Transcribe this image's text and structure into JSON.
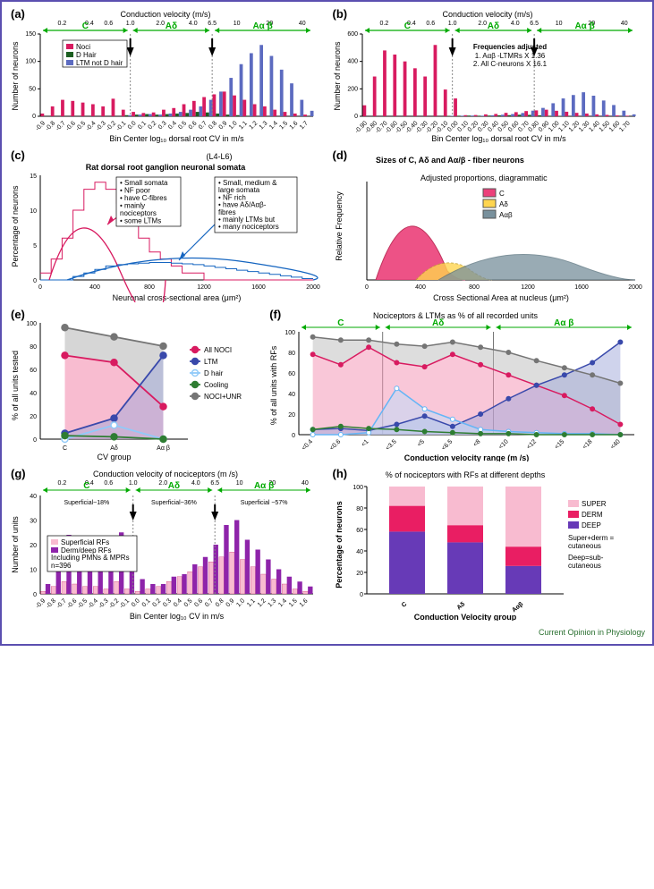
{
  "footer": "Current Opinion in Physiology",
  "panelA": {
    "label": "(a)",
    "topAxis": "Conduction velocity (m/s)",
    "yAxis": "Number of neurons",
    "xAxis": "Bin Center log₁₀ dorsal root CV in m/s",
    "groups": [
      "C",
      "Aδ",
      "Aα β"
    ],
    "legend": [
      "Noci",
      "D Hair",
      "LTM not D hair"
    ],
    "legendColors": [
      "#d81b60",
      "#1b5e20",
      "#5c6bc0"
    ],
    "topTicks": [
      "0.2",
      "0.4",
      "0.6",
      "1.0",
      "2.0",
      "4.0",
      "6.5",
      "10",
      "20",
      "40"
    ],
    "xTicks": [
      "-0.9",
      "-0.8",
      "-0.7",
      "-0.6",
      "-0.5",
      "-0.4",
      "-0.3",
      "-0.2",
      "-0.1",
      "0.0",
      "0.1",
      "0.2",
      "0.3",
      "0.4",
      "0.5",
      "0.6",
      "0.7",
      "0.8",
      "0.9",
      "1.0",
      "1.1",
      "1.2",
      "1.3",
      "1.4",
      "1.5",
      "1.6",
      "1.7"
    ],
    "yMax": 150,
    "noci": [
      5,
      18,
      30,
      28,
      25,
      22,
      18,
      32,
      12,
      8,
      6,
      7,
      12,
      15,
      22,
      28,
      35,
      40,
      45,
      38,
      30,
      22,
      18,
      12,
      8,
      5,
      3
    ],
    "ltm": [
      0,
      0,
      0,
      0,
      0,
      0,
      0,
      0,
      2,
      3,
      4,
      3,
      5,
      8,
      12,
      18,
      30,
      45,
      70,
      95,
      115,
      130,
      110,
      85,
      60,
      30,
      10
    ],
    "dhair": [
      0,
      0,
      0,
      0,
      0,
      0,
      0,
      0,
      2,
      3,
      4,
      3,
      4,
      5,
      6,
      8,
      7,
      5,
      3,
      2,
      1,
      0,
      0,
      0,
      0,
      0,
      0
    ]
  },
  "panelB": {
    "label": "(b)",
    "topAxis": "Conduction velocity (m/s)",
    "yAxis": "Number of neurons",
    "xAxis": "Bin Center log₁₀ dorsal root CV in m/s",
    "groups": [
      "C",
      "Aδ",
      "Aα β"
    ],
    "note1": "Frequencies adjusted",
    "note2": "1. Aαβ -LTMRs X 1.36",
    "note3": "2. All C-neurons X 16.1",
    "yMax": 600,
    "topTicks": [
      "0.2",
      "0.4",
      "0.6",
      "1.0",
      "2.0",
      "4.0",
      "6.5",
      "10",
      "20",
      "40"
    ],
    "xTicks": [
      "-0.90",
      "-0.80",
      "-0.70",
      "-0.60",
      "-0.50",
      "-0.40",
      "-0.30",
      "-0.20",
      "-0.10",
      "0.00",
      "0.10",
      "0.20",
      "0.30",
      "0.40",
      "0.50",
      "0.60",
      "0.70",
      "0.80",
      "0.90",
      "1.00",
      "1.10",
      "1.20",
      "1.30",
      "1.40",
      "1.50",
      "1.60",
      "1.70"
    ],
    "noci": [
      80,
      290,
      480,
      450,
      400,
      350,
      290,
      520,
      195,
      130,
      8,
      9,
      14,
      17,
      25,
      30,
      38,
      43,
      48,
      40,
      33,
      25,
      20,
      14,
      10,
      6,
      4
    ],
    "ltm": [
      0,
      0,
      0,
      0,
      0,
      0,
      0,
      0,
      3,
      4,
      5,
      4,
      7,
      11,
      16,
      24,
      41,
      61,
      95,
      130,
      155,
      175,
      150,
      115,
      82,
      41,
      14
    ],
    "dhair": [
      0,
      0,
      0,
      0,
      0,
      0,
      0,
      0,
      3,
      4,
      5,
      4,
      5,
      7,
      8,
      11,
      10,
      7,
      4,
      3,
      1,
      0,
      0,
      0,
      0,
      0,
      0
    ]
  },
  "panelC": {
    "label": "(c)",
    "supTitle": "(L4-L6)",
    "title": "Rat dorsal root ganglion neuronal somata",
    "yAxis": "Percentage of neurons",
    "xAxis": "Neuronal cross-sectional area (μm²)",
    "leftBox": [
      "• Small somata",
      "• NF poor",
      "• have C-fibres",
      "• mainly",
      "  nociceptors",
      "• some LTMs"
    ],
    "rightBox": [
      "• Small, medium &",
      "  large somata",
      "• NF rich",
      "• have Aδ/Aαβ-",
      "  fibres",
      "• mainly LTMs but",
      "• many nociceptors"
    ],
    "leftColors": [
      "#000",
      "#000",
      "#000",
      "#d81b60",
      "#d81b60",
      "#1565c0"
    ],
    "rightColors": [
      "#000",
      "#000",
      "#000",
      "#000",
      "#000",
      "#1565c0",
      "#d81b60"
    ],
    "xMax": 2000,
    "yMax": 15,
    "redHist": [
      1,
      3,
      6,
      10,
      13,
      14,
      13,
      11,
      8,
      6,
      4,
      3,
      2,
      1,
      1,
      0,
      0,
      0,
      0,
      0,
      0,
      0,
      0,
      0,
      0
    ],
    "blueHist": [
      0,
      0,
      0,
      0.5,
      1,
      1.5,
      2,
      2.2,
      2.3,
      2.4,
      2.5,
      2.5,
      2.4,
      2.3,
      2.2,
      2.0,
      1.8,
      1.6,
      1.4,
      1.2,
      1.0,
      0.8,
      0.6,
      0.4,
      0.2
    ]
  },
  "panelD": {
    "label": "(d)",
    "title": "Sizes of C, Aδ and Aα/β - fiber neurons",
    "subtitle": "Adjusted proportions, diagrammatic",
    "yAxis": "Relative Frequency",
    "xAxis": "Cross Sectional Area at nucleus (μm²)",
    "legend": [
      "C",
      "Aδ",
      "Aαβ"
    ],
    "legendColors": [
      "#ec407a",
      "#ffd54f",
      "#78909c"
    ],
    "xTicks": [
      "0",
      "400",
      "800",
      "1200",
      "1600",
      "2000"
    ]
  },
  "panelE": {
    "label": "(e)",
    "yAxis": "% of all units tested",
    "xAxis": "CV group",
    "xCats": [
      "C",
      "Aδ",
      "Aα β"
    ],
    "legend": [
      "All NOCI",
      "LTM",
      "D hair",
      "Cooling",
      "NOCI+UNR"
    ],
    "legendColors": [
      "#d81b60",
      "#3949ab",
      "#90caf9",
      "#2e7d32",
      "#757575"
    ],
    "noci": [
      72,
      66,
      28
    ],
    "ltm": [
      5,
      18,
      72
    ],
    "dhair": [
      0,
      12,
      0
    ],
    "cooling": [
      3,
      2,
      0
    ],
    "unr": [
      96,
      88,
      80
    ]
  },
  "panelF": {
    "label": "(f)",
    "title": "Nociceptors & LTMs as % of all recorded units",
    "yAxis": "% of all units with RFs",
    "xAxis": "Conduction velocity range (m /s)",
    "groups": [
      "C",
      "Aδ",
      "Aα β"
    ],
    "xCats": [
      "<0.4",
      "<0.6",
      "<1",
      "<3.5",
      "<5",
      "<6.5",
      "<8",
      "<10",
      "<12",
      "<15",
      "<18",
      "<40"
    ],
    "noci": [
      78,
      68,
      85,
      70,
      66,
      78,
      68,
      58,
      48,
      38,
      25,
      10
    ],
    "ltm": [
      5,
      6,
      4,
      10,
      18,
      8,
      20,
      35,
      48,
      58,
      70,
      90
    ],
    "dhair": [
      0,
      0,
      2,
      45,
      25,
      15,
      5,
      3,
      2,
      1,
      1,
      0
    ],
    "cooling": [
      5,
      8,
      6,
      5,
      3,
      2,
      1,
      1,
      0,
      0,
      0,
      0
    ],
    "unr": [
      95,
      92,
      92,
      88,
      86,
      90,
      85,
      80,
      72,
      65,
      58,
      50
    ]
  },
  "panelG": {
    "label": "(g)",
    "topAxis": "Conduction velocity of nociceptors (m /s)",
    "yAxis": "Number of units",
    "xAxis": "Bin Center log₁₀ CV in m/s",
    "groups": [
      "C",
      "Aδ",
      "Aα β"
    ],
    "groupNotes": [
      "Superficial~18%",
      "Superficial~36%",
      "Superficial ~57%"
    ],
    "legend": [
      "Superficial RFs",
      "Derm/deep RFs",
      "Including PMNs & MPRs",
      "n=396"
    ],
    "legendColors": [
      "#f8bbd0",
      "#8e24aa"
    ],
    "topTicks": [
      "0.2",
      "0.4",
      "0.6",
      "1.0",
      "2.0",
      "4.0",
      "6.5",
      "10",
      "20",
      "40"
    ],
    "xTicks": [
      "-0.9",
      "-0.8",
      "-0.7",
      "-0.6",
      "-0.5",
      "-0.4",
      "-0.3",
      "-0.2",
      "-0.1",
      "0.0",
      "0.1",
      "0.2",
      "0.3",
      "0.4",
      "0.5",
      "0.6",
      "0.7",
      "0.8",
      "0.9",
      "1.0",
      "1.1",
      "1.2",
      "1.3",
      "1.4",
      "1.5",
      "1.6"
    ],
    "yMax": 40,
    "sup": [
      1,
      3,
      5,
      4,
      3,
      3,
      2,
      5,
      2,
      1,
      2,
      3,
      5,
      7,
      9,
      11,
      13,
      15,
      17,
      14,
      11,
      8,
      6,
      4,
      2,
      1
    ],
    "deep": [
      4,
      14,
      24,
      22,
      20,
      18,
      15,
      25,
      10,
      6,
      4,
      4,
      7,
      8,
      12,
      15,
      20,
      28,
      30,
      22,
      18,
      14,
      10,
      7,
      5,
      3
    ]
  },
  "panelH": {
    "label": "(h)",
    "title": "% of nociceptors with RFs at different depths",
    "yAxis": "Percentage of neurons",
    "xAxis": "Conduction Velocity group",
    "xCats": [
      "C",
      "Aδ",
      "Aαβ"
    ],
    "legend": [
      "SUPER",
      "DERM",
      "DEEP"
    ],
    "legendNote1": "Super+derm =",
    "legendNote2": "cutaneous",
    "legendNote3": "Deep=sub-",
    "legendNote4": "cutaneous",
    "legendColors": [
      "#f8bbd0",
      "#e91e63",
      "#673ab7"
    ],
    "deep": [
      58,
      48,
      26
    ],
    "derm": [
      24,
      16,
      18
    ],
    "super": [
      18,
      36,
      56
    ]
  }
}
